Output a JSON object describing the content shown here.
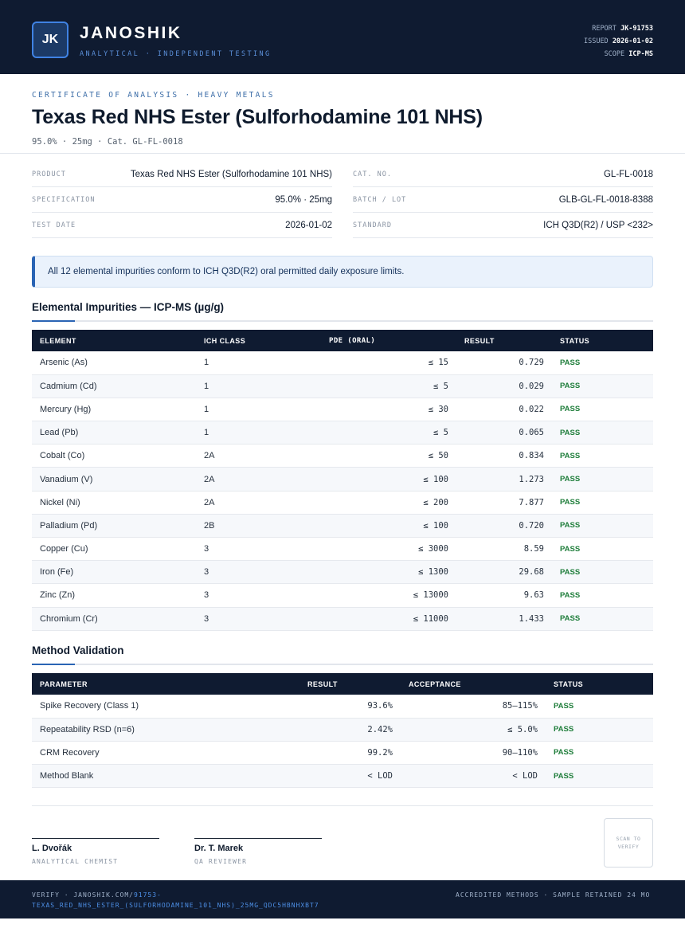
{
  "header": {
    "logo": "JK",
    "brand": "JANOSHIK",
    "tagline": "ANALYTICAL · INDEPENDENT TESTING",
    "report_label": "REPORT",
    "report_value": "JK-91753",
    "issued_label": "ISSUED",
    "issued_value": "2026-01-02",
    "scope_label": "SCOPE",
    "scope_value": "ICP-MS"
  },
  "title_block": {
    "kicker": "CERTIFICATE OF ANALYSIS · HEAVY METALS",
    "title": "Texas Red NHS Ester (Sulforhodamine 101 NHS)",
    "subtitle": "95.0% · 25mg  ·  Cat. GL-FL-0018"
  },
  "info": {
    "left": [
      {
        "label": "PRODUCT",
        "value": "Texas Red NHS Ester (Sulforhodamine 101 NHS)"
      },
      {
        "label": "SPECIFICATION",
        "value": "95.0% · 25mg"
      },
      {
        "label": "TEST DATE",
        "value": "2026-01-02"
      }
    ],
    "right": [
      {
        "label": "CAT. NO.",
        "value": "GL-FL-0018"
      },
      {
        "label": "BATCH / LOT",
        "value": "GLB-GL-FL-0018-8388"
      },
      {
        "label": "STANDARD",
        "value": "ICH Q3D(R2) / USP <232>"
      }
    ]
  },
  "notice": "All 12 elemental impurities conform to ICH Q3D(R2) oral permitted daily exposure limits.",
  "impurities": {
    "title": "Elemental Impurities — ICP-MS (µg/g)",
    "headers": [
      "ELEMENT",
      "ICH CLASS",
      "PDE (ORAL)",
      "RESULT",
      "STATUS"
    ],
    "rows": [
      [
        "Arsenic (As)",
        "1",
        "≤ 15",
        "0.729",
        "PASS"
      ],
      [
        "Cadmium (Cd)",
        "1",
        "≤ 5",
        "0.029",
        "PASS"
      ],
      [
        "Mercury (Hg)",
        "1",
        "≤ 30",
        "0.022",
        "PASS"
      ],
      [
        "Lead (Pb)",
        "1",
        "≤ 5",
        "0.065",
        "PASS"
      ],
      [
        "Cobalt (Co)",
        "2A",
        "≤ 50",
        "0.834",
        "PASS"
      ],
      [
        "Vanadium (V)",
        "2A",
        "≤ 100",
        "1.273",
        "PASS"
      ],
      [
        "Nickel (Ni)",
        "2A",
        "≤ 200",
        "7.877",
        "PASS"
      ],
      [
        "Palladium (Pd)",
        "2B",
        "≤ 100",
        "0.720",
        "PASS"
      ],
      [
        "Copper (Cu)",
        "3",
        "≤ 3000",
        "8.59",
        "PASS"
      ],
      [
        "Iron (Fe)",
        "3",
        "≤ 1300",
        "29.68",
        "PASS"
      ],
      [
        "Zinc (Zn)",
        "3",
        "≤ 13000",
        "9.63",
        "PASS"
      ],
      [
        "Chromium (Cr)",
        "3",
        "≤ 11000",
        "1.433",
        "PASS"
      ]
    ]
  },
  "validation": {
    "title": "Method Validation",
    "headers": [
      "PARAMETER",
      "RESULT",
      "ACCEPTANCE",
      "STATUS"
    ],
    "rows": [
      [
        "Spike Recovery (Class 1)",
        "93.6%",
        "85–115%",
        "PASS"
      ],
      [
        "Repeatability RSD (n=6)",
        "2.42%",
        "≤ 5.0%",
        "PASS"
      ],
      [
        "CRM Recovery",
        "99.2%",
        "90–110%",
        "PASS"
      ],
      [
        "Method Blank",
        "< LOD",
        "< LOD",
        "PASS"
      ]
    ]
  },
  "signatures": [
    {
      "name": "L. Dvořák",
      "role": "ANALYTICAL CHEMIST"
    },
    {
      "name": "Dr. T. Marek",
      "role": "QA REVIEWER"
    }
  ],
  "qr_text": "SCAN TO VERIFY",
  "footer": {
    "verify_prefix": "VERIFY · JANOSHIK.COM/",
    "verify_link": "91753-TEXAS_RED_NHS_ESTER_(SULFORHODAMINE_101_NHS)_25MG_QDC5HBNHXBT7",
    "right": "ACCREDITED METHODS · SAMPLE RETAINED 24 MO"
  }
}
